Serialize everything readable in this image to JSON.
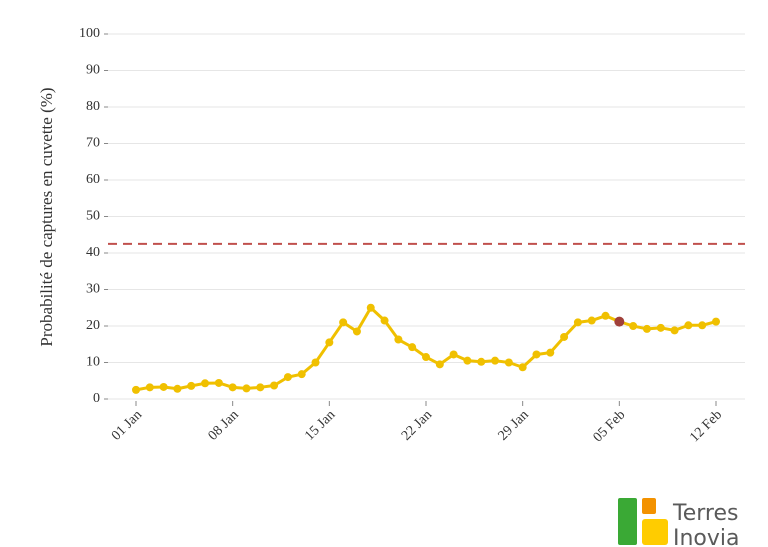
{
  "chart_data": {
    "type": "line",
    "y_label": "Probabilité de captures en cuvette (%)",
    "categories": [
      "01 Jan",
      null,
      null,
      null,
      null,
      null,
      null,
      "08 Jan",
      null,
      null,
      null,
      null,
      null,
      null,
      "15 Jan",
      null,
      null,
      null,
      null,
      null,
      null,
      "22 Jan",
      null,
      null,
      null,
      null,
      null,
      null,
      "29 Jan",
      null,
      null,
      null,
      null,
      null,
      null,
      "05 Feb",
      null,
      null,
      null,
      null,
      null,
      null,
      "12 Feb"
    ],
    "values": [
      2.5,
      3.2,
      3.3,
      2.8,
      3.6,
      4.3,
      4.4,
      3.2,
      2.9,
      3.2,
      3.7,
      6.0,
      6.8,
      10,
      15.5,
      21,
      18.5,
      25,
      21.5,
      16.3,
      14.2,
      11.5,
      9.5,
      12.2,
      10.5,
      10.2,
      10.5,
      10,
      8.7,
      12.2,
      12.7,
      17,
      21,
      21.5,
      22.8,
      21.2,
      20,
      19.2,
      19.5,
      18.8,
      20.2,
      20.2,
      21.2
    ],
    "color": "#f0c000",
    "marker_colors": [
      "#f0c000",
      "#f0c000",
      "#f0c000",
      "#f0c000",
      "#f0c000",
      "#f0c000",
      "#f0c000",
      "#f0c000",
      "#f0c000",
      "#f0c000",
      "#f0c000",
      "#f0c000",
      "#f0c000",
      "#f0c000",
      "#f0c000",
      "#f0c000",
      "#f0c000",
      "#f0c000",
      "#f0c000",
      "#f0c000",
      "#f0c000",
      "#f0c000",
      "#f0c000",
      "#f0c000",
      "#f0c000",
      "#f0c000",
      "#f0c000",
      "#f0c000",
      "#f0c000",
      "#f0c000",
      "#f0c000",
      "#f0c000",
      "#f0c000",
      "#f0c000",
      "#f0c000",
      "#a0403a",
      "#f0c000",
      "#f0c000",
      "#f0c000",
      "#f0c000",
      "#f0c000",
      "#f0c000",
      "#f0c000"
    ],
    "reference_line": {
      "value": 42.5,
      "color": "#c0504d",
      "style": "dashed"
    },
    "ylim": [
      0,
      100
    ],
    "yticks": [
      0,
      10,
      20,
      30,
      40,
      50,
      60,
      70,
      80,
      90,
      100
    ],
    "grid": true
  },
  "logo": {
    "lines": [
      "Terres",
      "Inovia"
    ]
  }
}
